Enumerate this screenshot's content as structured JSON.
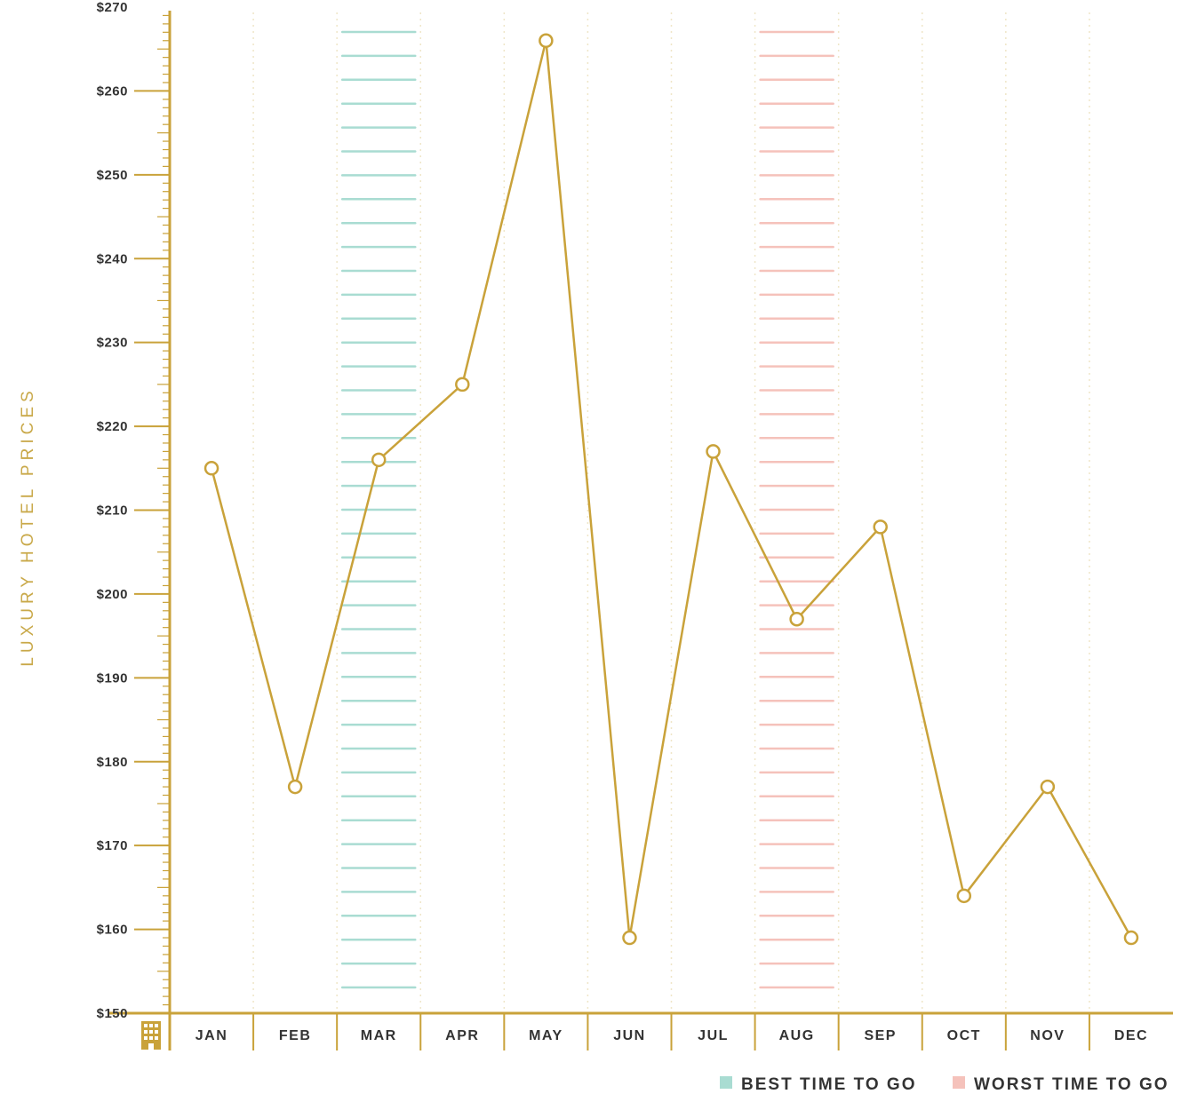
{
  "chart_data": {
    "type": "line",
    "ylabel": "LUXURY HOTEL PRICES",
    "xlabel": "",
    "categories": [
      "JAN",
      "FEB",
      "MAR",
      "APR",
      "MAY",
      "JUN",
      "JUL",
      "AUG",
      "SEP",
      "OCT",
      "NOV",
      "DEC"
    ],
    "series": [
      {
        "values": [
          215,
          177,
          216,
          225,
          266,
          159,
          217,
          197,
          208,
          164,
          177,
          159
        ]
      }
    ],
    "ylim": [
      150,
      270
    ],
    "yticks": [
      "$150",
      "$160",
      "$170",
      "$180",
      "$190",
      "$200",
      "$210",
      "$220",
      "$230",
      "$240",
      "$250",
      "$260",
      "$270"
    ],
    "highlight_best": "MAR",
    "highlight_worst": "AUG",
    "legend": {
      "best": "BEST TIME TO GO",
      "worst": "WORST TIME TO GO",
      "position": "bottom-right"
    },
    "grid": true
  },
  "colors": {
    "line": "#c9a23a",
    "axis": "#c9a23a",
    "best": "#a9dcd2",
    "worst": "#f5c2bb",
    "text": "#333333",
    "ylabel": "#c9a94a"
  },
  "icons": {
    "axis_corner": "building-icon"
  }
}
